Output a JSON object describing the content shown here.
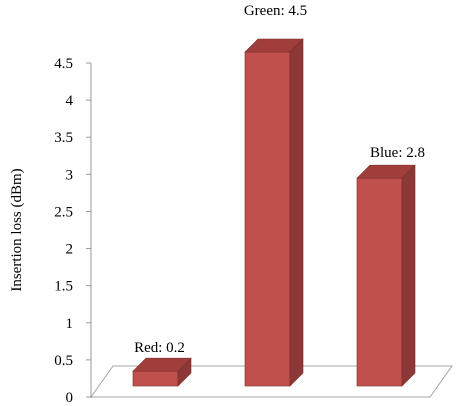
{
  "chart_data": {
    "type": "bar",
    "style": "3d-column",
    "categories": [
      "Red",
      "Green",
      "Blue"
    ],
    "values": [
      0.2,
      4.5,
      2.8
    ],
    "data_labels": [
      "Red: 0.2",
      "Green: 4.5",
      "Blue: 2.8"
    ],
    "title": "",
    "xlabel": "",
    "ylabel": "Insertion loss (dBm)",
    "ylim": [
      0,
      4.5
    ],
    "yticks": [
      "0",
      "0.5",
      "1",
      "1.5",
      "2",
      "2.5",
      "3",
      "3.5",
      "4",
      "4.5"
    ],
    "grid": false,
    "legend": "none",
    "colors": {
      "front": "#c0504d",
      "side": "#8c3836",
      "top": "#a03e3b",
      "outline": "#7a2e2c"
    }
  }
}
